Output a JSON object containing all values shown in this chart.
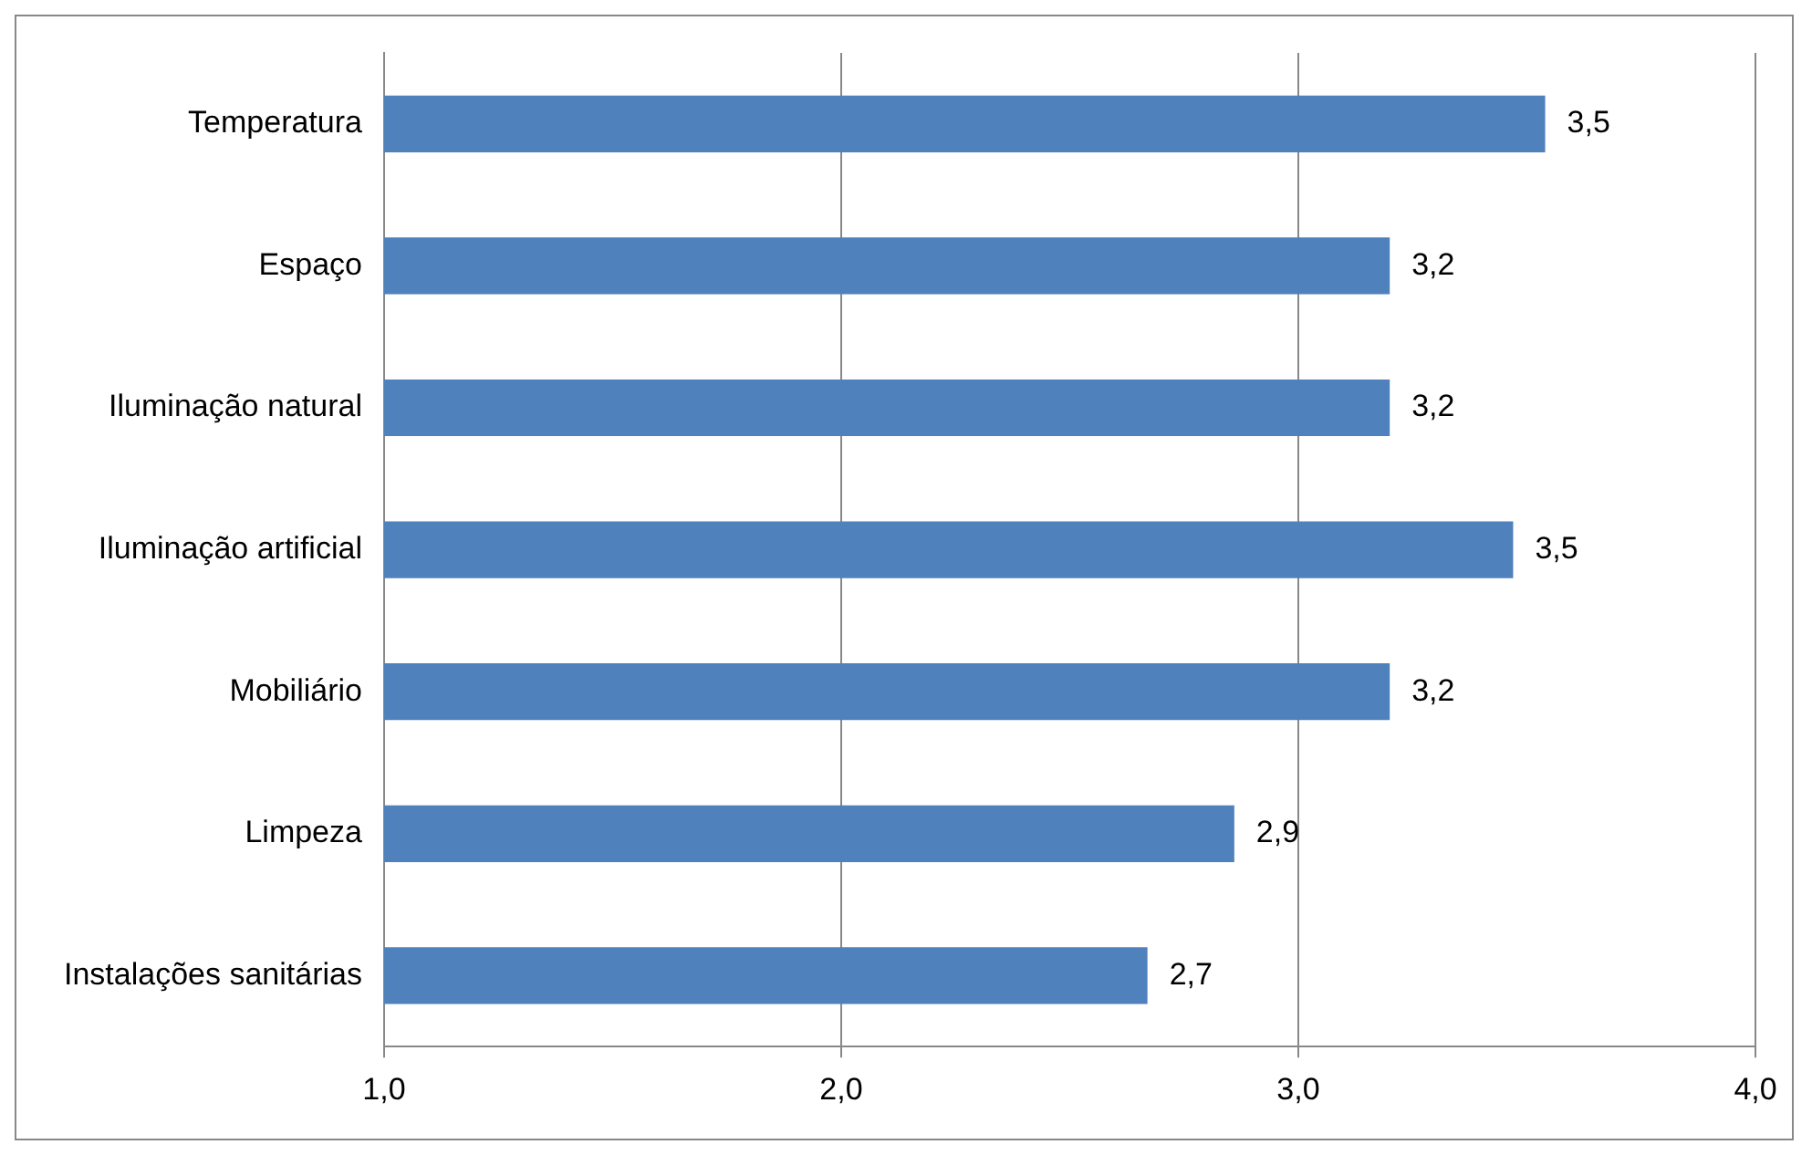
{
  "chart_data": {
    "type": "bar",
    "orientation": "horizontal",
    "categories": [
      "Temperatura",
      "Espaço",
      "Iluminação natural",
      "Iluminação artificial",
      "Mobiliário",
      "Limpeza",
      "Instalações sanitárias"
    ],
    "values": [
      3.54,
      3.2,
      3.2,
      3.47,
      3.2,
      2.86,
      2.67
    ],
    "value_labels": [
      "3,5",
      "3,2",
      "3,2",
      "3,5",
      "3,2",
      "2,9",
      "2,7"
    ],
    "color": "#4f81bd",
    "xlim": [
      1,
      4
    ],
    "xticks": [
      {
        "value": 1,
        "label": "1,0"
      },
      {
        "value": 2,
        "label": "2,0"
      },
      {
        "value": 3,
        "label": "3,0"
      },
      {
        "value": 4,
        "label": "4,0"
      }
    ],
    "grid": "x"
  }
}
